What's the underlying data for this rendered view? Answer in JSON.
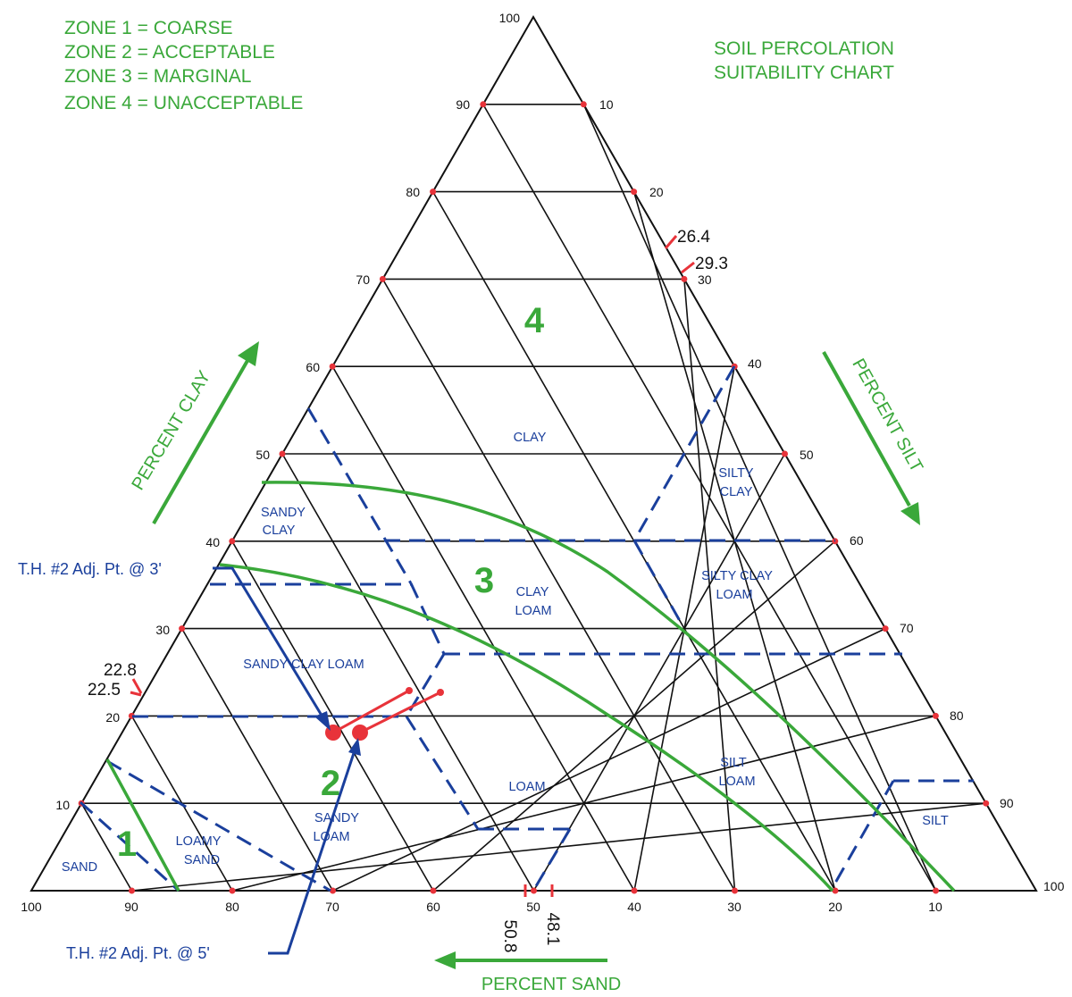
{
  "legend": {
    "zone1": "ZONE 1 = COARSE",
    "zone2": "ZONE 2 = ACCEPTABLE",
    "zone3": "ZONE 3 = MARGINAL",
    "zone4": "ZONE 4 = UNACCEPTABLE"
  },
  "title": {
    "line1": "SOIL PERCOLATION",
    "line2": "SUITABILITY CHART"
  },
  "axes": {
    "clay": "PERCENT CLAY",
    "silt": "PERCENT SILT",
    "sand": "PERCENT SAND"
  },
  "ticks": {
    "clay": [
      "10",
      "20",
      "30",
      "40",
      "50",
      "60",
      "70",
      "80",
      "90",
      "100"
    ],
    "silt": [
      "10",
      "20",
      "30",
      "40",
      "50",
      "60",
      "70",
      "80",
      "90",
      "100"
    ],
    "sand": [
      "100",
      "90",
      "80",
      "70",
      "60",
      "50",
      "40",
      "30",
      "20",
      "10"
    ]
  },
  "regions": {
    "clay": "CLAY",
    "silty_clay_1": "SILTY",
    "silty_clay_2": "CLAY",
    "sandy_clay_1": "SANDY",
    "sandy_clay_2": "CLAY",
    "clay_loam_1": "CLAY",
    "clay_loam_2": "LOAM",
    "silty_clay_loam_1": "SILTY CLAY",
    "silty_clay_loam_2": "LOAM",
    "sandy_clay_loam": "SANDY  CLAY  LOAM",
    "loam": "LOAM",
    "silt_loam_1": "SILT",
    "silt_loam_2": "LOAM",
    "sandy_loam_1": "SANDY",
    "sandy_loam_2": "LOAM",
    "loamy_sand_1": "LOAMY",
    "loamy_sand_2": "SAND",
    "sand": "SAND",
    "silt": "SILT"
  },
  "zones": {
    "z1": "1",
    "z2": "2",
    "z3": "3",
    "z4": "4"
  },
  "annotations": {
    "silt_264": "26.4",
    "silt_293": "29.3",
    "clay_228": "22.8",
    "clay_225": "22.5",
    "sand_508": "50.8",
    "sand_481": "48.1"
  },
  "callouts": {
    "pt3": "T.H. #2 Adj. Pt. @ 3'",
    "pt5": "T.H. #2 Adj. Pt. @ 5'"
  },
  "colors": {
    "grid": "#111111",
    "boundary": "#1a3f9c",
    "zone": "#3aa83a",
    "marker": "#e8333a"
  },
  "chart_data": {
    "type": "ternary",
    "axes": [
      "PERCENT CLAY",
      "PERCENT SILT",
      "PERCENT SAND"
    ],
    "points": [
      {
        "name": "T.H. #2 Adj. Pt. @ 3'",
        "clay": 22.8,
        "silt": 26.4,
        "sand": 50.8
      },
      {
        "name": "T.H. #2 Adj. Pt. @ 5'",
        "clay": 22.5,
        "silt": 29.3,
        "sand": 48.1
      }
    ]
  }
}
